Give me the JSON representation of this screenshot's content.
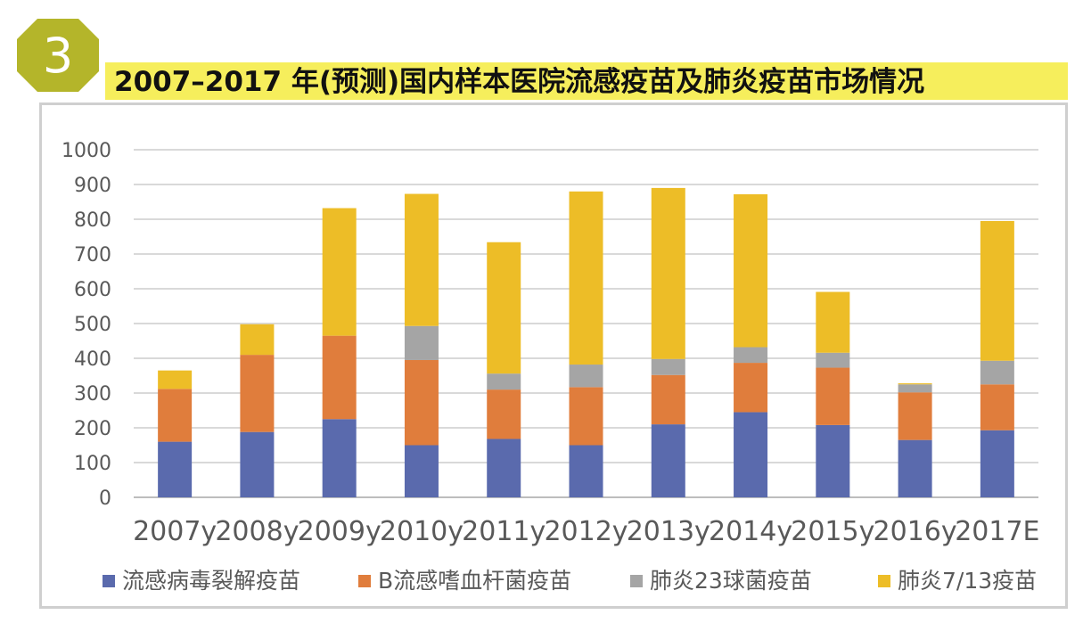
{
  "badge": {
    "number": "3",
    "color": "#b4b52a"
  },
  "title": "2007–2017 年(预测)国内样本医院流感疫苗及肺炎疫苗市场情况",
  "chart_data": {
    "type": "bar",
    "stacked": true,
    "categories": [
      "2007y",
      "2008y",
      "2009y",
      "2010y",
      "2011y",
      "2012y",
      "2013y",
      "2014y",
      "2015y",
      "2016y",
      "2017E"
    ],
    "series": [
      {
        "name": "流感病毒裂解疫苗",
        "color": "#5a6aad",
        "values": [
          160,
          188,
          225,
          150,
          168,
          150,
          210,
          245,
          208,
          165,
          193
        ]
      },
      {
        "name": "B流感嗜血杆菌疫苗",
        "color": "#e07d3c",
        "values": [
          152,
          222,
          240,
          245,
          142,
          167,
          142,
          142,
          165,
          137,
          132
        ]
      },
      {
        "name": "肺炎23球菌疫苗",
        "color": "#a5a5a5",
        "values": [
          0,
          0,
          0,
          98,
          46,
          65,
          46,
          45,
          43,
          23,
          68
        ]
      },
      {
        "name": "肺炎7/13疫苗",
        "color": "#edbd27",
        "values": [
          53,
          88,
          367,
          380,
          378,
          498,
          492,
          440,
          175,
          3,
          402
        ]
      }
    ],
    "ylim": [
      0,
      1000
    ],
    "yticks": [
      0,
      100,
      200,
      300,
      400,
      500,
      600,
      700,
      800,
      900,
      1000
    ],
    "grid": true,
    "legend_position": "bottom"
  }
}
